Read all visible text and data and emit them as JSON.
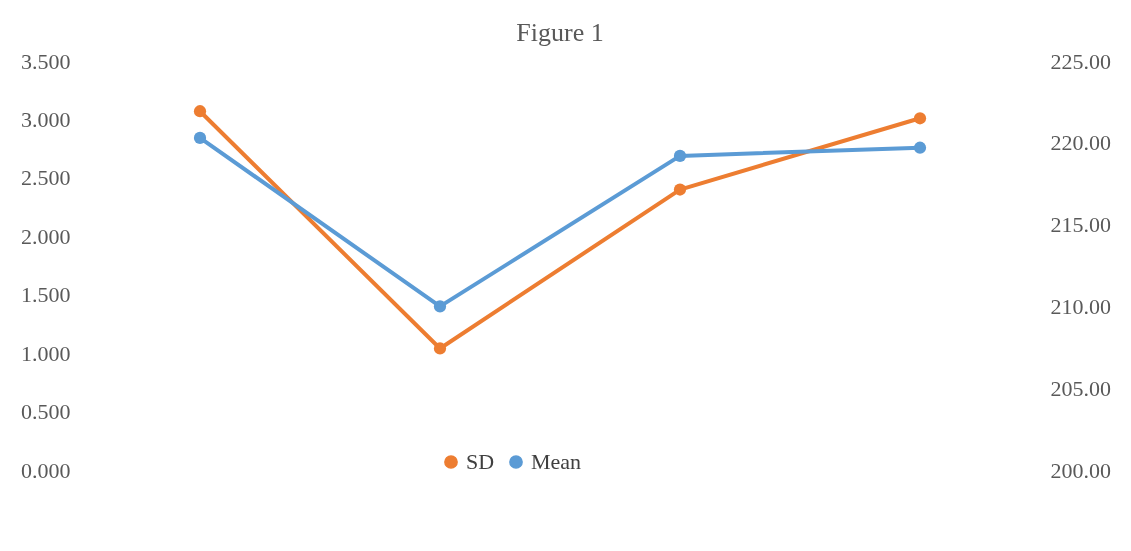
{
  "chart_data": {
    "type": "line",
    "title": "Figure 1",
    "categories": [
      null,
      null,
      null,
      null
    ],
    "series": [
      {
        "name": "SD",
        "color": "#ed7d31",
        "values": [
          3.07,
          1.04,
          2.4,
          3.01
        ]
      },
      {
        "name": "Mean",
        "color": "#5b9bd5",
        "axis": "y2",
        "values": [
          220.3,
          210.0,
          219.2,
          219.7
        ]
      }
    ],
    "ylim": [
      0,
      3.5
    ],
    "yticks": [
      {
        "value": 0,
        "label": "0.000"
      },
      {
        "value": 0.5,
        "label": "0.500"
      },
      {
        "value": 1,
        "label": "1.000"
      },
      {
        "value": 1.5,
        "label": "1.500"
      },
      {
        "value": 2,
        "label": "2.000"
      },
      {
        "value": 2.5,
        "label": "2.500"
      },
      {
        "value": 3,
        "label": "3.000"
      },
      {
        "value": 3.5,
        "label": "3.500"
      }
    ],
    "y2lim": [
      200,
      225
    ],
    "y2ticks": [
      {
        "value": 200,
        "label": "200.00"
      },
      {
        "value": 205,
        "label": "205.00"
      },
      {
        "value": 210,
        "label": "210.00"
      },
      {
        "value": 215,
        "label": "215.00"
      },
      {
        "value": 220,
        "label": "220.00"
      },
      {
        "value": 225,
        "label": "225.00"
      }
    ],
    "tick_labels": "y",
    "grid": false,
    "legend": "bottom",
    "marker": "circle",
    "line_style": "solid"
  }
}
